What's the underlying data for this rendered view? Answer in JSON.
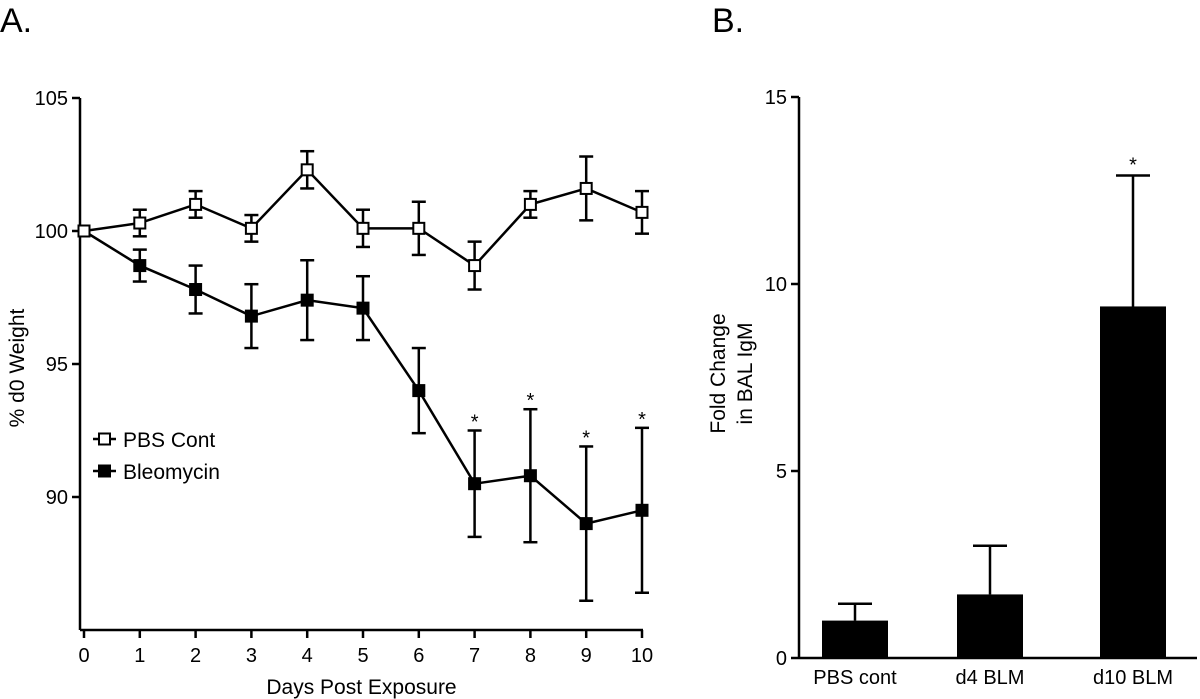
{
  "colors": {
    "ink": "#000000",
    "background": "#ffffff",
    "open_marker_fill": "#ffffff"
  },
  "chart_data": [
    {
      "panel": "A.",
      "type": "line",
      "xlabel": "Days Post Exposure",
      "ylabel": "% d0 Weight",
      "xlim": [
        0,
        10
      ],
      "ylim": [
        85,
        105
      ],
      "xticks": [
        0,
        1,
        2,
        3,
        4,
        5,
        6,
        7,
        8,
        9,
        10
      ],
      "yticks": [
        90,
        95,
        100,
        105
      ],
      "x": [
        0,
        1,
        2,
        3,
        4,
        5,
        6,
        7,
        8,
        9,
        10
      ],
      "series": [
        {
          "name": "PBS Cont",
          "marker": "open-square",
          "values": [
            100.0,
            100.3,
            101.0,
            100.1,
            102.3,
            100.1,
            100.1,
            98.7,
            101.0,
            101.6,
            100.7
          ],
          "error": [
            0.0,
            0.5,
            0.5,
            0.5,
            0.7,
            0.7,
            1.0,
            0.9,
            0.5,
            1.2,
            0.8
          ],
          "significant": [
            false,
            false,
            false,
            false,
            false,
            false,
            false,
            false,
            false,
            false,
            false
          ]
        },
        {
          "name": "Bleomycin",
          "marker": "filled-square",
          "values": [
            100.0,
            98.7,
            97.8,
            96.8,
            97.4,
            97.1,
            94.0,
            90.5,
            90.8,
            89.0,
            89.5
          ],
          "error": [
            0.0,
            0.6,
            0.9,
            1.2,
            1.5,
            1.2,
            1.6,
            2.0,
            2.5,
            2.9,
            3.1
          ],
          "significant": [
            false,
            false,
            false,
            false,
            false,
            false,
            false,
            true,
            true,
            true,
            true
          ]
        }
      ],
      "significance_marker": "*",
      "legend_position": "center-left"
    },
    {
      "panel": "B.",
      "type": "bar",
      "xlabel": "",
      "ylabel_lines": [
        "Fold Change",
        "in BAL IgM"
      ],
      "ylim": [
        0,
        15
      ],
      "yticks": [
        0,
        5,
        10,
        15
      ],
      "categories": [
        "PBS cont",
        "d4 BLM",
        "d10 BLM"
      ],
      "values": [
        1.0,
        1.7,
        9.4
      ],
      "error": [
        0.45,
        1.3,
        3.5
      ],
      "significant": [
        false,
        false,
        true
      ],
      "significance_marker": "*"
    }
  ]
}
